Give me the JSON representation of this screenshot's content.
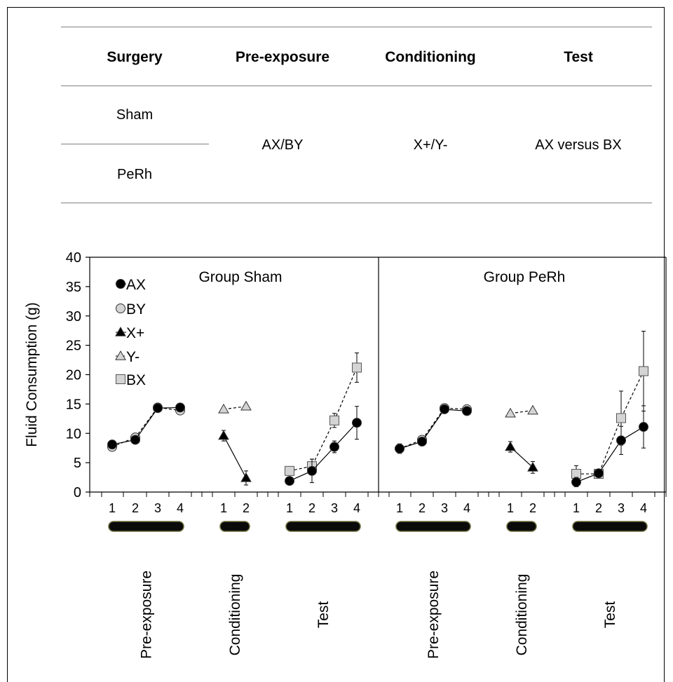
{
  "design_table": {
    "headers": [
      "Surgery",
      "Pre-exposure",
      "Conditioning",
      "Test"
    ],
    "surgery_groups": [
      "Sham",
      "PeRh"
    ],
    "pre_exposure": "AX/BY",
    "conditioning": "X+/Y-",
    "test": "AX versus BX"
  },
  "chart_data": {
    "type": "line",
    "ylabel": "Fluid Consumption (g)",
    "ylim": [
      0,
      40
    ],
    "yticks": [
      0,
      5,
      10,
      15,
      20,
      25,
      30,
      35,
      40
    ],
    "legend": {
      "placement": "top-left",
      "entries": [
        {
          "name": "AX",
          "marker": "circle",
          "fill": "#000000"
        },
        {
          "name": "BY",
          "marker": "circle",
          "fill": "#d4d4d4"
        },
        {
          "name": "X+",
          "marker": "triangle",
          "fill": "#000000"
        },
        {
          "name": "Y-",
          "marker": "triangle",
          "fill": "#d4d4d4"
        },
        {
          "name": "BX",
          "marker": "square",
          "fill": "#d4d4d4"
        }
      ]
    },
    "phase_labels": [
      "Pre-exposure",
      "Conditioning",
      "Test"
    ],
    "panels": [
      {
        "title": "Group Sham",
        "phases": [
          {
            "name": "Pre-exposure",
            "days": [
              "1",
              "2",
              "3",
              "4"
            ],
            "series": [
              {
                "name": "BY",
                "marker": "circle",
                "fill": "#d4d4d4",
                "line": "dashed",
                "values": [
                  7.7,
                  9.3,
                  14.4,
                  13.9
                ],
                "errors": [
                  0.4,
                  0.4,
                  0.4,
                  0.4
                ]
              },
              {
                "name": "AX",
                "marker": "circle",
                "fill": "#000000",
                "line": "solid",
                "values": [
                  8.1,
                  8.9,
                  14.3,
                  14.4
                ],
                "errors": [
                  0.4,
                  0.4,
                  0.4,
                  0.4
                ]
              }
            ]
          },
          {
            "name": "Conditioning",
            "days": [
              "1",
              "2"
            ],
            "series": [
              {
                "name": "Y-",
                "marker": "triangle",
                "fill": "#d4d4d4",
                "line": "dashed",
                "values": [
                  14.1,
                  14.6
                ],
                "errors": [
                  0.3,
                  0.3
                ]
              },
              {
                "name": "X+",
                "marker": "triangle",
                "fill": "#000000",
                "line": "solid",
                "values": [
                  9.6,
                  2.4
                ],
                "errors": [
                  0.9,
                  1.2
                ]
              }
            ]
          },
          {
            "name": "Test",
            "days": [
              "1",
              "2",
              "3",
              "4"
            ],
            "series": [
              {
                "name": "BX",
                "marker": "square",
                "fill": "#d4d4d4",
                "line": "dashed",
                "values": [
                  3.6,
                  4.4,
                  12.2,
                  21.2
                ],
                "errors": [
                  0.3,
                  1.2,
                  1.2,
                  2.5
                ]
              },
              {
                "name": "AX",
                "marker": "circle",
                "fill": "#000000",
                "line": "solid",
                "values": [
                  1.9,
                  3.6,
                  7.7,
                  11.8
                ],
                "errors": [
                  0.3,
                  2.0,
                  1.0,
                  2.8
                ]
              }
            ]
          }
        ]
      },
      {
        "title": "Group PeRh",
        "phases": [
          {
            "name": "Pre-exposure",
            "days": [
              "1",
              "2",
              "3",
              "4"
            ],
            "series": [
              {
                "name": "BY",
                "marker": "circle",
                "fill": "#d4d4d4",
                "line": "dashed",
                "values": [
                  7.4,
                  8.9,
                  14.3,
                  14.1
                ],
                "errors": [
                  0.8,
                  0.4,
                  0.4,
                  0.4
                ]
              },
              {
                "name": "AX",
                "marker": "circle",
                "fill": "#000000",
                "line": "solid",
                "values": [
                  7.4,
                  8.6,
                  14.1,
                  13.8
                ],
                "errors": [
                  0.8,
                  0.4,
                  0.4,
                  0.4
                ]
              }
            ]
          },
          {
            "name": "Conditioning",
            "days": [
              "1",
              "2"
            ],
            "series": [
              {
                "name": "Y-",
                "marker": "triangle",
                "fill": "#d4d4d4",
                "line": "dashed",
                "values": [
                  13.4,
                  13.9
                ],
                "errors": [
                  0.3,
                  0.3
                ]
              },
              {
                "name": "X+",
                "marker": "triangle",
                "fill": "#000000",
                "line": "solid",
                "values": [
                  7.7,
                  4.2
                ],
                "errors": [
                  0.9,
                  1.0
                ]
              }
            ]
          },
          {
            "name": "Test",
            "days": [
              "1",
              "2",
              "3",
              "4"
            ],
            "series": [
              {
                "name": "BX",
                "marker": "square",
                "fill": "#d4d4d4",
                "line": "dashed",
                "values": [
                  3.1,
                  3.1,
                  12.6,
                  20.6
                ],
                "errors": [
                  1.4,
                  0.4,
                  4.6,
                  6.8
                ]
              },
              {
                "name": "AX",
                "marker": "circle",
                "fill": "#000000",
                "line": "solid",
                "values": [
                  1.7,
                  3.2,
                  8.8,
                  11.1
                ],
                "errors": [
                  0.8,
                  0.4,
                  2.4,
                  3.6
                ]
              }
            ]
          }
        ]
      }
    ]
  }
}
